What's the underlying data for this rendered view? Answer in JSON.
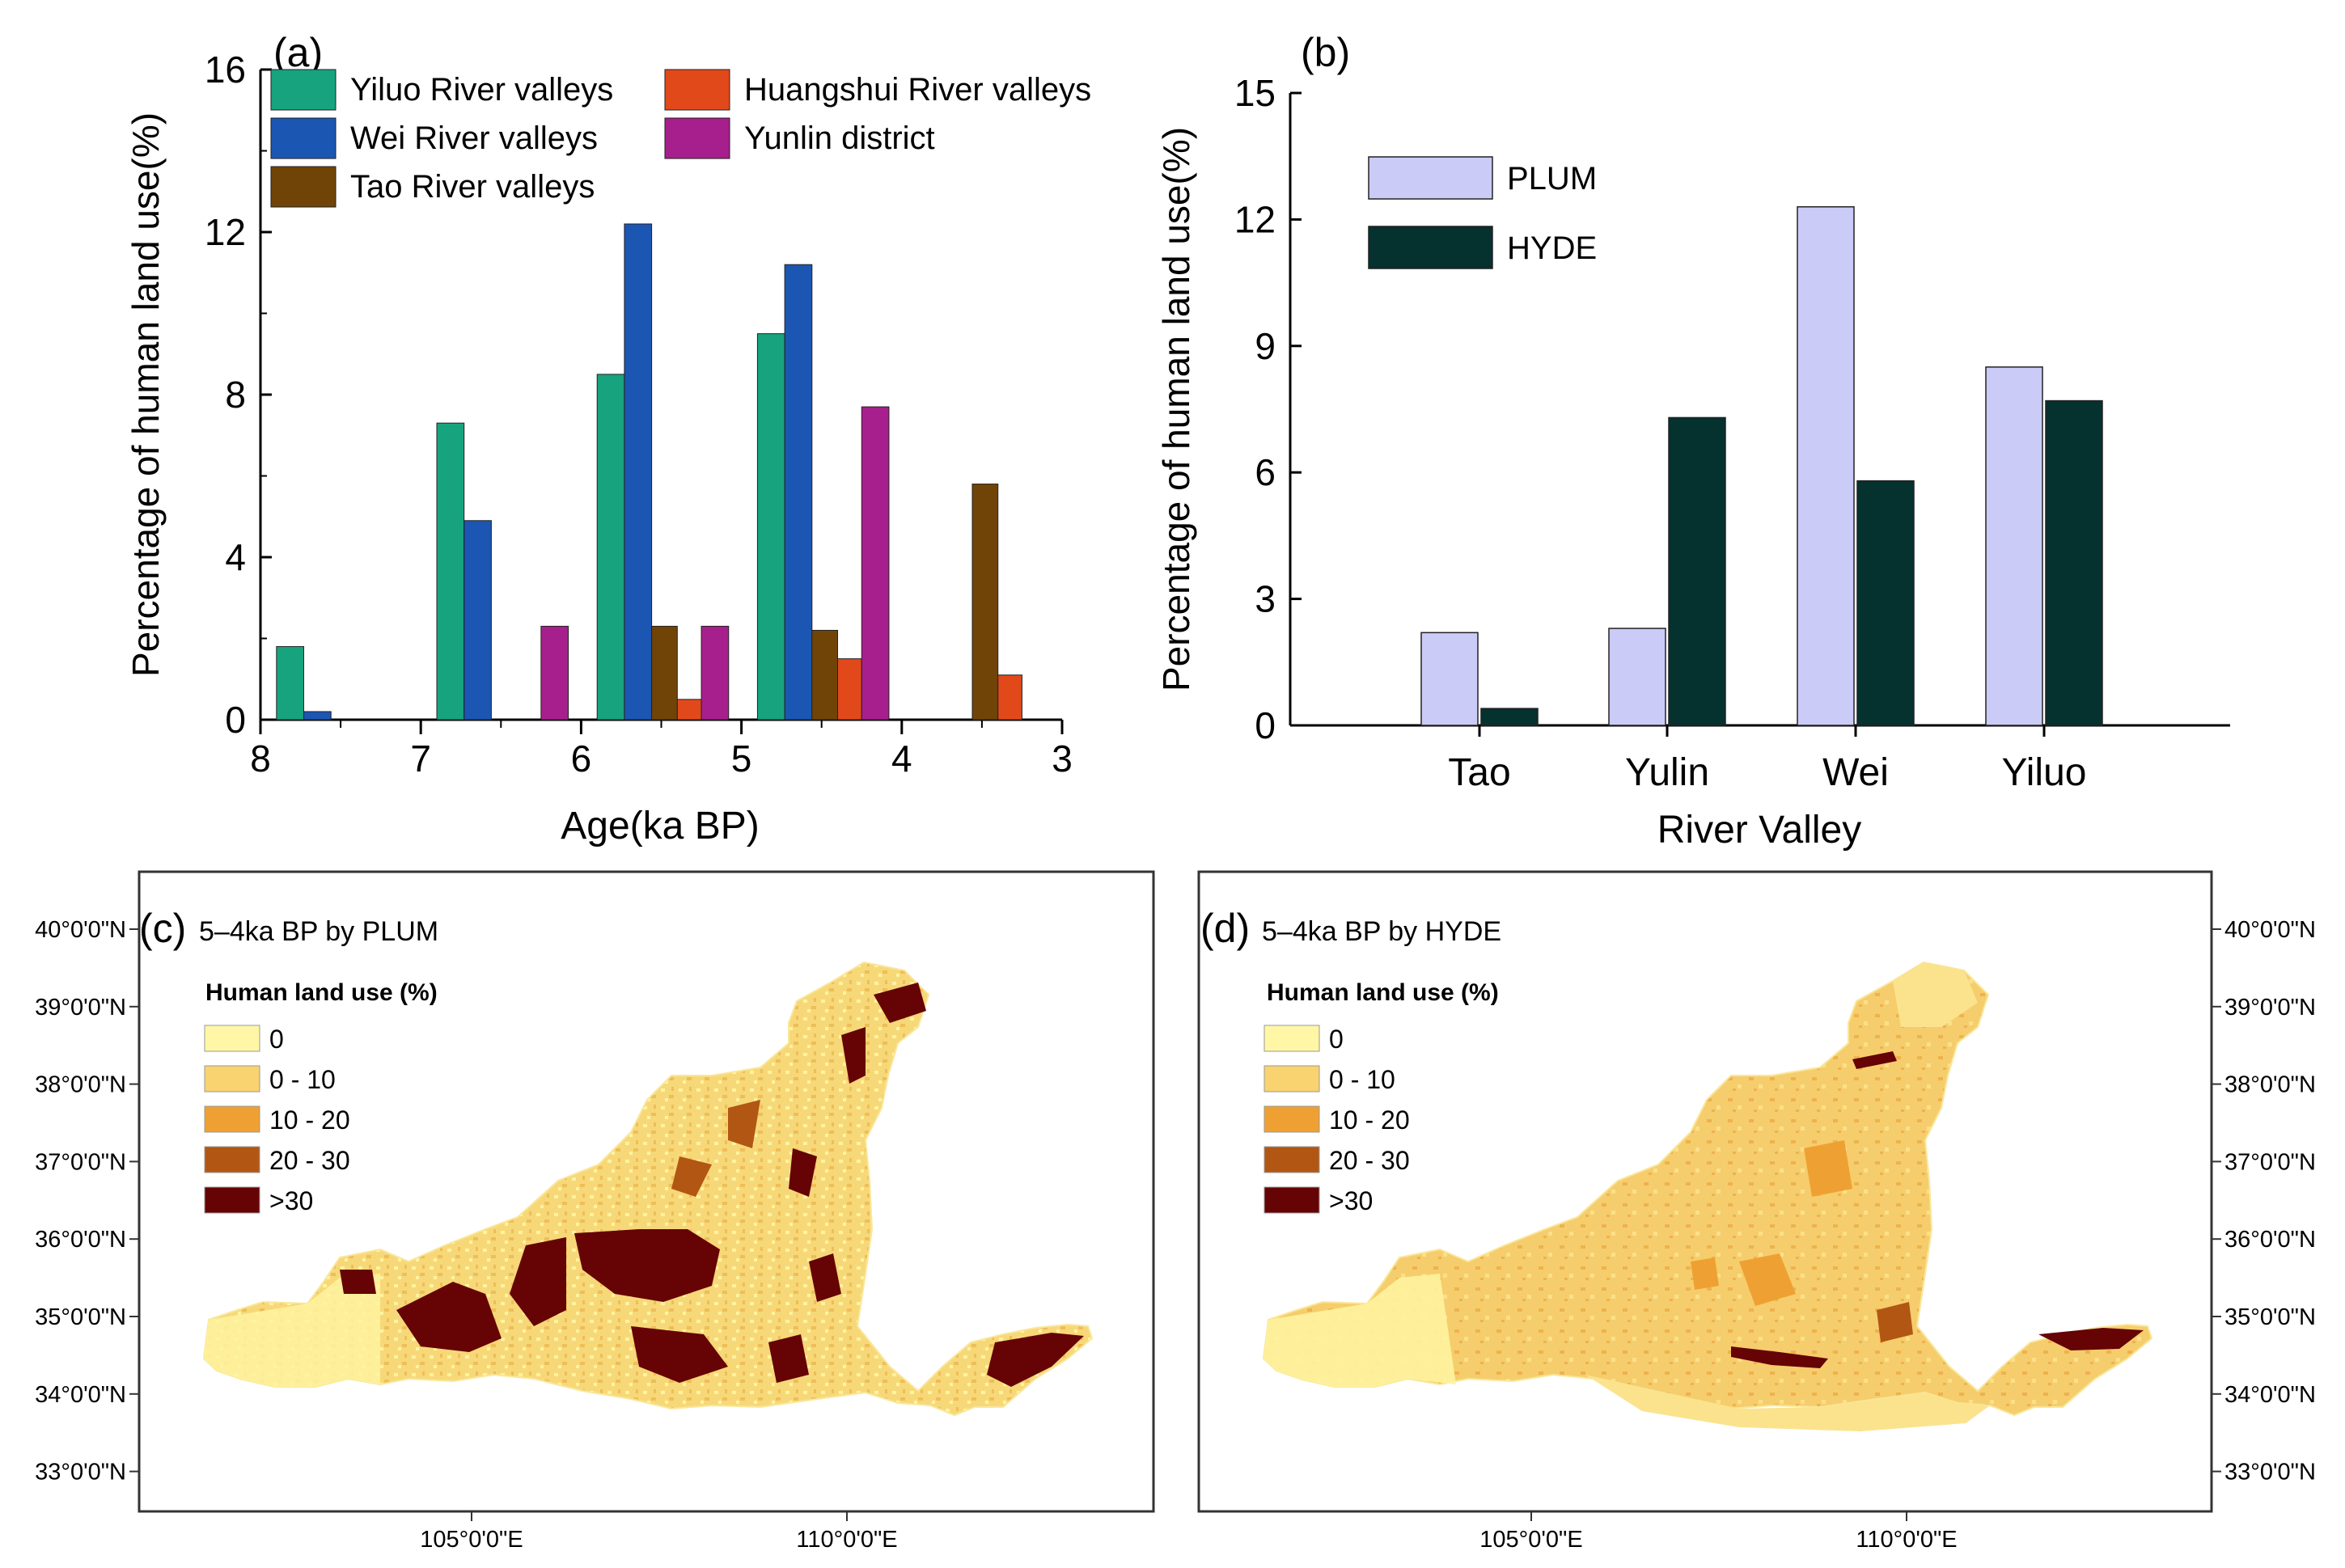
{
  "chart_data": [
    {
      "panel": "(a)",
      "type": "bar",
      "xlabel": "Age(ka BP)",
      "ylabel": "Percentage of human land use(%)",
      "xlim": [
        8,
        3
      ],
      "ylim": [
        0,
        16
      ],
      "xticks": [
        "8",
        "7",
        "6",
        "5",
        "4",
        "3"
      ],
      "yticks": [
        "0",
        "4",
        "8",
        "12",
        "16"
      ],
      "legend": [
        {
          "name": "Yiluo River valleys",
          "color": "#17a37e"
        },
        {
          "name": "Wei River valleys",
          "color": "#1b56b3"
        },
        {
          "name": "Tao River valleys",
          "color": "#704407"
        },
        {
          "name": "Huangshui River valleys",
          "color": "#e2491a"
        },
        {
          "name": "Yunlin district",
          "color": "#a71f8c"
        }
      ],
      "bars": [
        {
          "series": "Yiluo River valleys",
          "x_start": 7.9,
          "x_end": 7.73,
          "value": 1.8
        },
        {
          "series": "Wei River valleys",
          "x_start": 7.73,
          "x_end": 7.56,
          "value": 0.2
        },
        {
          "series": "Yiluo River valleys",
          "x_start": 6.9,
          "x_end": 6.73,
          "value": 7.3
        },
        {
          "series": "Wei River valleys",
          "x_start": 6.73,
          "x_end": 6.56,
          "value": 4.9
        },
        {
          "series": "Yunlin district",
          "x_start": 6.25,
          "x_end": 6.08,
          "value": 2.3
        },
        {
          "series": "Yiluo River valleys",
          "x_start": 5.9,
          "x_end": 5.73,
          "value": 8.5
        },
        {
          "series": "Wei River valleys",
          "x_start": 5.73,
          "x_end": 5.56,
          "value": 12.2
        },
        {
          "series": "Tao River valleys",
          "x_start": 5.56,
          "x_end": 5.4,
          "value": 2.3
        },
        {
          "series": "Huangshui River valleys",
          "x_start": 5.4,
          "x_end": 5.25,
          "value": 0.5
        },
        {
          "series": "Yunlin district",
          "x_start": 5.25,
          "x_end": 5.08,
          "value": 2.3
        },
        {
          "series": "Yiluo River valleys",
          "x_start": 4.9,
          "x_end": 4.73,
          "value": 9.5
        },
        {
          "series": "Wei River valleys",
          "x_start": 4.73,
          "x_end": 4.56,
          "value": 11.2
        },
        {
          "series": "Tao River valleys",
          "x_start": 4.56,
          "x_end": 4.4,
          "value": 2.2
        },
        {
          "series": "Huangshui River valleys",
          "x_start": 4.4,
          "x_end": 4.25,
          "value": 1.5
        },
        {
          "series": "Yunlin district",
          "x_start": 4.25,
          "x_end": 4.08,
          "value": 7.7
        },
        {
          "series": "Tao River valleys",
          "x_start": 3.56,
          "x_end": 3.4,
          "value": 5.8
        },
        {
          "series": "Huangshui River valleys",
          "x_start": 3.4,
          "x_end": 3.25,
          "value": 1.1
        }
      ]
    },
    {
      "panel": "(b)",
      "type": "bar",
      "xlabel": "River Valley",
      "ylabel": "Percentage of human land use(%)",
      "categories": [
        "Tao",
        "Yulin",
        "Wei",
        "Yiluo"
      ],
      "ylim": [
        0,
        15
      ],
      "yticks": [
        "0",
        "3",
        "6",
        "9",
        "12",
        "15"
      ],
      "series": [
        {
          "name": "PLUM",
          "color": "#cbcbf7",
          "values": [
            2.2,
            2.3,
            12.3,
            8.5
          ]
        },
        {
          "name": "HYDE",
          "color": "#05312f",
          "values": [
            0.4,
            7.3,
            5.8,
            7.7
          ]
        }
      ]
    },
    {
      "panel": "(c)",
      "type": "map",
      "title": "5–4ka BP by PLUM",
      "legend_title": "Human land use (%)",
      "legend": [
        {
          "label": "0",
          "color": "#fff7a5"
        },
        {
          "label": "0 - 10",
          "color": "#f9d370"
        },
        {
          "label": "10 - 20",
          "color": "#eea132"
        },
        {
          "label": "20 - 30",
          "color": "#b25713"
        },
        {
          "label": ">30",
          "color": "#660305"
        }
      ],
      "lat_labels": [
        "40°0'0\"N",
        "39°0'0\"N",
        "38°0'0\"N",
        "37°0'0\"N",
        "36°0'0\"N",
        "35°0'0\"N",
        "34°0'0\"N",
        "33°0'0\"N"
      ],
      "lon_labels": [
        "105°0'0\"E",
        "110°0'0\"E"
      ]
    },
    {
      "panel": "(d)",
      "type": "map",
      "title": "5–4ka BP by HYDE",
      "legend_title": "Human land use (%)",
      "legend": [
        {
          "label": "0",
          "color": "#fff7a5"
        },
        {
          "label": "0 - 10",
          "color": "#f9d370"
        },
        {
          "label": "10 - 20",
          "color": "#eea132"
        },
        {
          "label": "20 - 30",
          "color": "#b25713"
        },
        {
          "label": ">30",
          "color": "#660305"
        }
      ],
      "lat_labels": [
        "40°0'0\"N",
        "39°0'0\"N",
        "38°0'0\"N",
        "37°0'0\"N",
        "36°0'0\"N",
        "35°0'0\"N",
        "34°0'0\"N",
        "33°0'0\"N"
      ],
      "lon_labels": [
        "105°0'0\"E",
        "110°0'0\"E"
      ]
    }
  ]
}
